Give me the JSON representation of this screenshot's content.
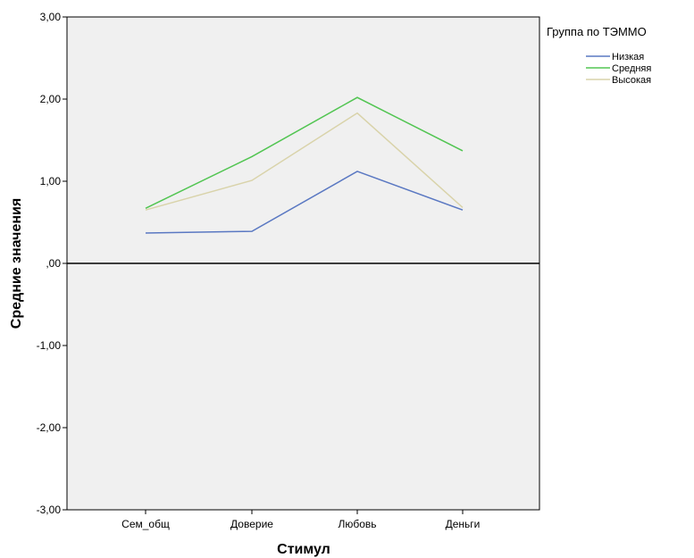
{
  "chart_data": {
    "type": "line",
    "xlabel": "Стимул",
    "ylabel": "Средние значения",
    "categories": [
      "Сем_общ",
      "Доверие",
      "Любовь",
      "Деньги"
    ],
    "y_ticks": [
      "3,00",
      "2,00",
      "1,00",
      ",00",
      "-1,00",
      "-2,00",
      "-3,00"
    ],
    "ylim": [
      -3,
      3
    ],
    "reference_line_y": 0,
    "grid": false,
    "plot_background": "#f0f0f0",
    "legend": {
      "title": "Группа по ТЭММО",
      "placement": "top-right"
    },
    "series": [
      {
        "name": "Низкая",
        "color": "#5a78c2",
        "values": [
          0.37,
          0.39,
          1.12,
          0.65
        ]
      },
      {
        "name": "Средняя",
        "color": "#52c552",
        "values": [
          0.67,
          1.3,
          2.02,
          1.37
        ]
      },
      {
        "name": "Высокая",
        "color": "#d9d3aa",
        "values": [
          0.65,
          1.01,
          1.83,
          0.68
        ]
      }
    ]
  }
}
